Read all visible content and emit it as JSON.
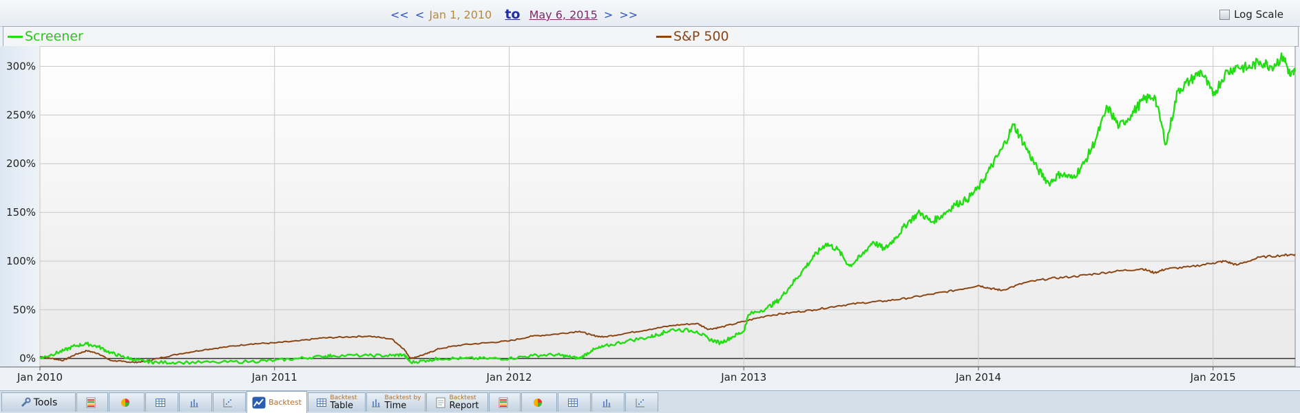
{
  "nav": {
    "first": "<<",
    "prev": "<",
    "from_date": "Jan 1, 2010",
    "to_label": "to",
    "to_date": "May 6, 2015",
    "next": ">",
    "last": ">>"
  },
  "log_scale": {
    "label": "Log Scale",
    "checked": false
  },
  "colors": {
    "screener": "#22dd11",
    "sp500": "#8b4513"
  },
  "tabs": [
    {
      "label": "Tools",
      "icon": "wrench-icon"
    },
    {
      "icon": "table-color-icon"
    },
    {
      "icon": "pie-chart-icon"
    },
    {
      "icon": "grid-icon"
    },
    {
      "icon": "bar-chart-icon"
    },
    {
      "icon": "scatter-icon"
    },
    {
      "label": "Backtest",
      "icon": "line-chart-icon",
      "active": true
    },
    {
      "small": "Backtest",
      "big": "Table",
      "icon": "grid-icon"
    },
    {
      "small": "Backtest by",
      "big": "Time",
      "icon": "bar-chart-icon"
    },
    {
      "small": "Backtest",
      "big": "Report",
      "icon": "report-icon"
    },
    {
      "icon": "table-color-icon"
    },
    {
      "icon": "pie-chart-icon"
    },
    {
      "icon": "grid-icon"
    },
    {
      "icon": "bar-chart-icon"
    },
    {
      "icon": "scatter-icon"
    }
  ],
  "chart_data": {
    "type": "line",
    "title": "",
    "xlabel": "",
    "ylabel": "",
    "x_ticks": [
      "Jan 2010",
      "Jan 2011",
      "Jan 2012",
      "Jan 2013",
      "Jan 2014",
      "Jan 2015"
    ],
    "y_ticks": [
      "0%",
      "50%",
      "100%",
      "150%",
      "200%",
      "250%",
      "300%"
    ],
    "ylim": [
      -8,
      318
    ],
    "xlim": [
      2010.0,
      2015.35
    ],
    "grid": true,
    "legend_position": "top",
    "series": [
      {
        "name": "Screener",
        "x": [
          2010.0,
          2010.05,
          2010.1,
          2010.15,
          2010.2,
          2010.25,
          2010.3,
          2010.35,
          2010.4,
          2010.45,
          2010.5,
          2010.6,
          2010.75,
          2010.9,
          2011.0,
          2011.1,
          2011.2,
          2011.25,
          2011.4,
          2011.5,
          2011.55,
          2011.58,
          2011.65,
          2011.7,
          2011.8,
          2011.9,
          2012.0,
          2012.1,
          2012.2,
          2012.25,
          2012.3,
          2012.35,
          2012.4,
          2012.5,
          2012.6,
          2012.65,
          2012.7,
          2012.8,
          2012.85,
          2012.9,
          2012.95,
          2013.0,
          2013.02,
          2013.1,
          2013.15,
          2013.2,
          2013.25,
          2013.3,
          2013.35,
          2013.4,
          2013.45,
          2013.5,
          2013.55,
          2013.6,
          2013.65,
          2013.7,
          2013.75,
          2013.8,
          2013.85,
          2013.9,
          2013.95,
          2014.0,
          2014.05,
          2014.1,
          2014.15,
          2014.2,
          2014.25,
          2014.3,
          2014.35,
          2014.4,
          2014.45,
          2014.5,
          2014.55,
          2014.6,
          2014.65,
          2014.7,
          2014.75,
          2014.8,
          2014.85,
          2014.9,
          2014.95,
          2015.0,
          2015.05,
          2015.1,
          2015.15,
          2015.2,
          2015.25,
          2015.3,
          2015.33,
          2015.35
        ],
        "values": [
          0,
          4,
          8,
          13,
          15,
          12,
          6,
          2,
          -1,
          -3,
          -4,
          -4,
          -4,
          -3,
          -2,
          0,
          2,
          3,
          3,
          3,
          4,
          -4,
          -2,
          0,
          0,
          0,
          0,
          3,
          4,
          2,
          0,
          8,
          12,
          18,
          22,
          26,
          30,
          28,
          20,
          16,
          22,
          28,
          45,
          52,
          60,
          75,
          90,
          105,
          118,
          112,
          95,
          105,
          120,
          112,
          125,
          140,
          150,
          140,
          148,
          158,
          163,
          175,
          195,
          215,
          240,
          218,
          195,
          180,
          190,
          185,
          200,
          225,
          258,
          238,
          250,
          265,
          270,
          220,
          275,
          285,
          295,
          270,
          292,
          300,
          298,
          305,
          300,
          310,
          290,
          295
        ]
      },
      {
        "name": "S&P 500",
        "x": [
          2010.0,
          2010.05,
          2010.1,
          2010.15,
          2010.2,
          2010.25,
          2010.3,
          2010.35,
          2010.4,
          2010.45,
          2010.5,
          2010.6,
          2010.7,
          2010.8,
          2010.9,
          2011.0,
          2011.1,
          2011.2,
          2011.3,
          2011.4,
          2011.5,
          2011.55,
          2011.58,
          2011.65,
          2011.7,
          2011.8,
          2011.9,
          2012.0,
          2012.1,
          2012.2,
          2012.3,
          2012.35,
          2012.4,
          2012.5,
          2012.6,
          2012.7,
          2012.8,
          2012.85,
          2012.9,
          2013.0,
          2013.1,
          2013.2,
          2013.3,
          2013.4,
          2013.5,
          2013.6,
          2013.7,
          2013.8,
          2013.9,
          2014.0,
          2014.05,
          2014.1,
          2014.2,
          2014.3,
          2014.4,
          2014.5,
          2014.6,
          2014.7,
          2014.75,
          2014.8,
          2014.9,
          2015.0,
          2015.05,
          2015.1,
          2015.2,
          2015.3,
          2015.35
        ],
        "values": [
          2,
          0,
          -2,
          4,
          8,
          5,
          -2,
          -3,
          -4,
          -3,
          0,
          5,
          9,
          12,
          15,
          16,
          18,
          21,
          22,
          23,
          20,
          10,
          0,
          5,
          10,
          14,
          16,
          18,
          23,
          25,
          28,
          24,
          22,
          26,
          30,
          34,
          36,
          30,
          32,
          38,
          44,
          47,
          50,
          54,
          57,
          59,
          62,
          66,
          70,
          75,
          72,
          70,
          78,
          82,
          84,
          87,
          90,
          92,
          88,
          92,
          94,
          98,
          100,
          96,
          104,
          106,
          107
        ]
      }
    ]
  }
}
